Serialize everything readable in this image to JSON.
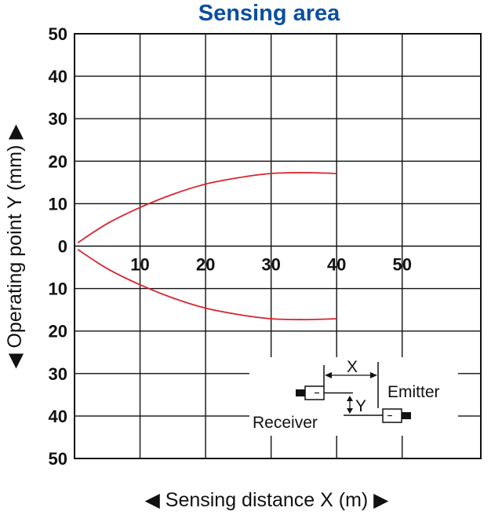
{
  "chart_data": {
    "type": "line",
    "title": "Sensing area",
    "xlabel": "◀ Sensing distance X (m) ▶",
    "ylabel": "◀ Operating point Y (mm) ▶",
    "xlim": [
      0,
      62
    ],
    "ylim_upper": [
      0,
      50
    ],
    "ylim_lower": [
      0,
      50
    ],
    "x_ticks": [
      10,
      20,
      30,
      40,
      50
    ],
    "y_ticks_upper": [
      50,
      40,
      30,
      20,
      10
    ],
    "y_zero_label": "0",
    "y_ticks_lower": [
      10,
      20,
      30,
      40,
      50
    ],
    "grid": true,
    "line_color": "#d9232d",
    "series": [
      {
        "x": [
          0.5,
          5,
          10,
          15,
          20,
          25,
          30,
          35,
          40
        ],
        "y": [
          0.8,
          5.3,
          9.1,
          12.2,
          14.6,
          16.1,
          17.1,
          17.3,
          17.1
        ]
      },
      {
        "x": [
          0.5,
          5,
          10,
          15,
          20,
          25,
          30,
          35,
          40
        ],
        "y": [
          -0.8,
          -5.3,
          -9.1,
          -12.2,
          -14.6,
          -16.1,
          -17.1,
          -17.3,
          -17.1
        ]
      }
    ],
    "inset": {
      "x_label": "X",
      "y_label": "Y",
      "emitter_label": "Emitter",
      "receiver_label": "Receiver"
    }
  }
}
